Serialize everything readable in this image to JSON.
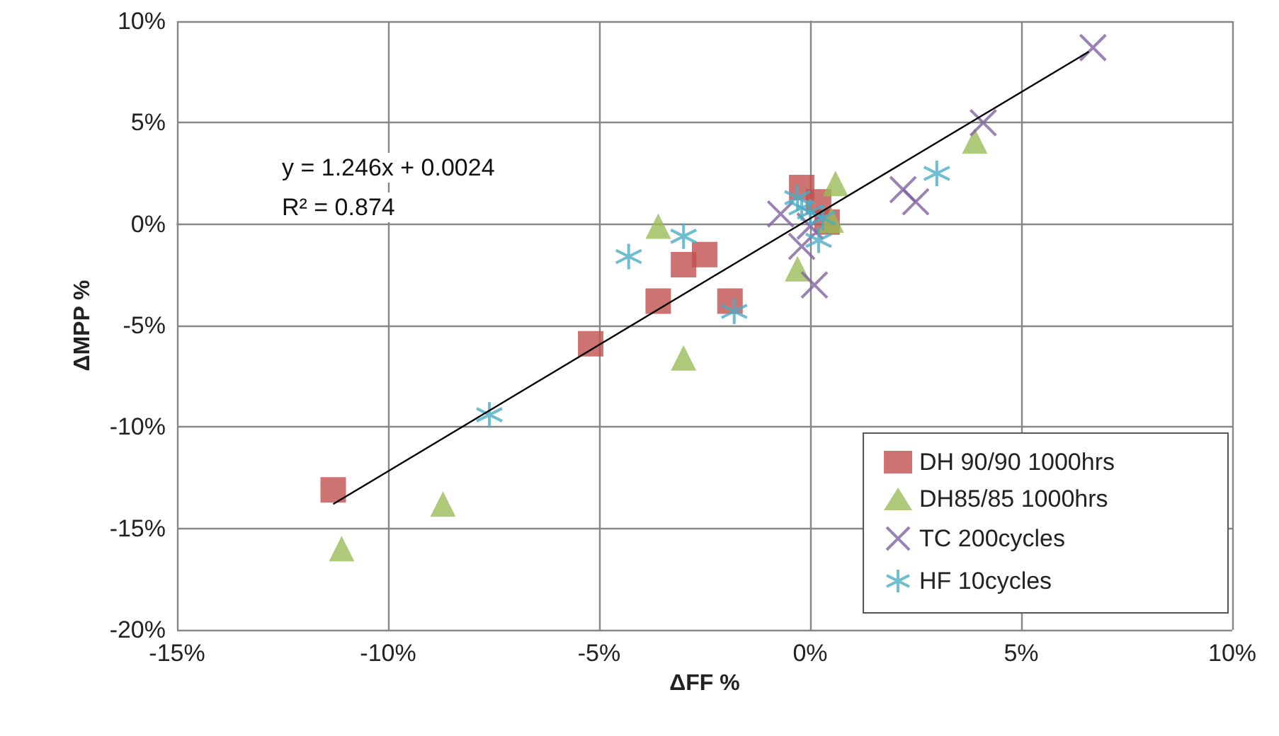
{
  "chart_data": {
    "type": "scatter",
    "xlabel": "ΔFF %",
    "ylabel": "ΔMPP %",
    "annotations": [
      "y = 1.246x + 0.0024",
      "R² = 0.874"
    ],
    "xlim": [
      -15,
      10
    ],
    "ylim": [
      -20,
      10
    ],
    "xticks": [
      {
        "value": -15,
        "label": "-15%"
      },
      {
        "value": -10,
        "label": "-10%"
      },
      {
        "value": -5,
        "label": "-5%"
      },
      {
        "value": 0,
        "label": "0%"
      },
      {
        "value": 5,
        "label": "5%"
      },
      {
        "value": 10,
        "label": "10%"
      }
    ],
    "yticks": [
      {
        "value": -20,
        "label": "-20%"
      },
      {
        "value": -15,
        "label": "-15%"
      },
      {
        "value": -10,
        "label": "-10%"
      },
      {
        "value": -5,
        "label": "-5%"
      },
      {
        "value": 0,
        "label": "0%"
      },
      {
        "value": 5,
        "label": "5%"
      },
      {
        "value": 10,
        "label": "10%"
      }
    ],
    "grid": true,
    "legend": "bottom right",
    "series": [
      {
        "name": "DH 90/90 1000hrs",
        "color": "#c0504d",
        "marker": "square",
        "x": [
          -11.3,
          -5.2,
          -3.6,
          -3.0,
          -2.5,
          -1.9,
          -0.2,
          0.2,
          0.4
        ],
        "values": [
          -13.1,
          -5.9,
          -3.8,
          -2.0,
          -1.5,
          -3.8,
          1.8,
          1.1,
          0.1
        ]
      },
      {
        "name": "DH85/85 1000hrs",
        "color": "#9bbb59",
        "marker": "triangle",
        "x": [
          -11.1,
          -8.7,
          -3.6,
          -3.0,
          -0.3,
          0.6,
          0.5,
          3.9
        ],
        "values": [
          -16.0,
          -13.8,
          -0.1,
          -6.6,
          -2.2,
          2.0,
          0.2,
          4.1
        ]
      },
      {
        "name": "TC 200cycles",
        "color": "#8064a2",
        "marker": "cross",
        "x": [
          6.7,
          4.1,
          2.2,
          2.5,
          0.1,
          -0.7,
          -0.2,
          0.0
        ],
        "values": [
          8.7,
          5.0,
          1.7,
          1.1,
          -3.0,
          0.5,
          -1.1,
          -0.1
        ]
      },
      {
        "name": "HF 10cycles",
        "color": "#4bacc6",
        "marker": "cross",
        "x": [
          -4.3,
          -3.0,
          -1.8,
          -7.6,
          3.0,
          -0.3,
          0.0,
          0.2,
          0.3,
          -0.2
        ],
        "values": [
          -1.6,
          -0.6,
          -4.3,
          -9.4,
          2.5,
          1.3,
          0.6,
          -0.8,
          0.3,
          0.8
        ]
      },
      {
        "type": "line",
        "color": "#000000",
        "marker": "none",
        "line_style": "solid",
        "x": [
          -11.3,
          6.6
        ],
        "values": [
          -13.8,
          8.5
        ]
      }
    ]
  }
}
